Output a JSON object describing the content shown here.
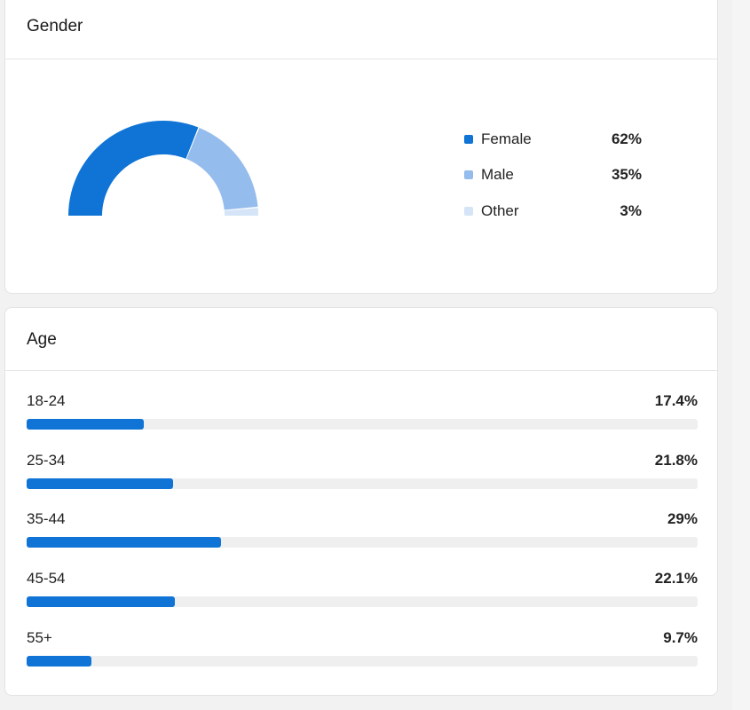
{
  "gender": {
    "title": "Gender",
    "chart_data": {
      "type": "pie",
      "variant": "half-donut",
      "categories": [
        "Female",
        "Male",
        "Other"
      ],
      "values": [
        62,
        35,
        3
      ],
      "unit": "%",
      "colors": [
        "#0f74d6",
        "#94bcec",
        "#d5e5f7"
      ]
    },
    "legend": [
      {
        "label": "Female",
        "value": "62%",
        "color": "#0f74d6"
      },
      {
        "label": "Male",
        "value": "35%",
        "color": "#94bcec"
      },
      {
        "label": "Other",
        "value": "3%",
        "color": "#d5e5f7"
      }
    ]
  },
  "age": {
    "title": "Age",
    "chart_data": {
      "type": "bar",
      "orientation": "horizontal",
      "categories": [
        "18-24",
        "25-34",
        "35-44",
        "45-54",
        "55+"
      ],
      "values": [
        17.4,
        21.8,
        29,
        22.1,
        9.7
      ],
      "unit": "%",
      "color": "#0f74d6"
    },
    "rows": [
      {
        "label": "18-24",
        "value": "17.4%"
      },
      {
        "label": "25-34",
        "value": "21.8%"
      },
      {
        "label": "35-44",
        "value": "29%"
      },
      {
        "label": "45-54",
        "value": "22.1%"
      },
      {
        "label": "55+",
        "value": "9.7%"
      }
    ]
  },
  "colors": {
    "accent": "#0f74d6",
    "track": "#efefef",
    "background": "#f3f2f2"
  }
}
